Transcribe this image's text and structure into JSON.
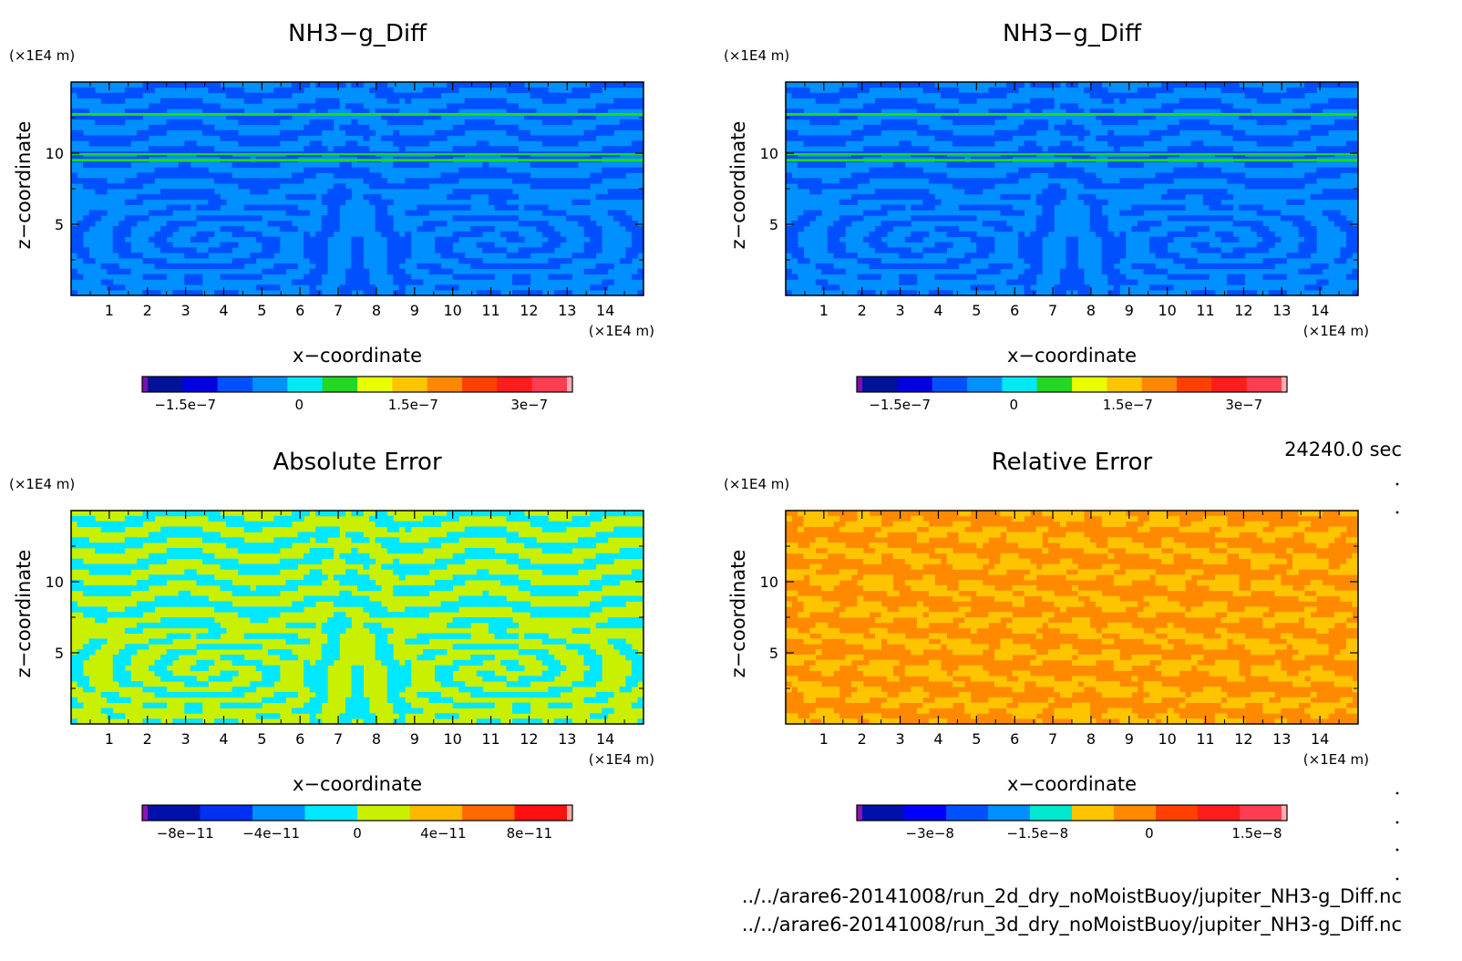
{
  "time_label": "24240.0 sec",
  "file_lines": [
    "../../arare6-20141008/run_2d_dry_noMoistBuoy/jupiter_NH3-g_Diff.nc",
    "../../arare6-20141008/run_3d_dry_noMoistBuoy/jupiter_NH3-g_Diff.nc"
  ],
  "colors": {
    "palette_a": [
      "#7a10b0",
      "#00129a",
      "#0000e0",
      "#0050ff",
      "#0090ff",
      "#00e8f4",
      "#22d820",
      "#eaff00",
      "#ffc400",
      "#ff8800",
      "#ff4000",
      "#ff1c1c",
      "#ff3c50",
      "#ffb0b0"
    ],
    "palette_abs": [
      "#8a14b4",
      "#0010a8",
      "#0030f0",
      "#0090ff",
      "#00e8ff",
      "#c8f000",
      "#ffb800",
      "#ff6a00",
      "#ff1010",
      "#ffaaaa"
    ],
    "palette_rel": [
      "#8a14b4",
      "#0010a8",
      "#0000ff",
      "#0050ff",
      "#0090ff",
      "#00e8d0",
      "#ffc400",
      "#ff8a00",
      "#ff4000",
      "#ff1c1c",
      "#ff3c50",
      "#ffb0b0"
    ]
  },
  "chart_data": [
    {
      "type": "heatmap",
      "title": "NH3−g_Diff",
      "xlabel": "x−coordinate",
      "ylabel": "z−coordinate",
      "x_unit": "(×1E4 m)",
      "y_unit": "(×1E4 m)",
      "xlim": [
        0,
        15
      ],
      "ylim": [
        0,
        15
      ],
      "xticks": [
        "1",
        "2",
        "3",
        "4",
        "5",
        "6",
        "7",
        "8",
        "9",
        "10",
        "11",
        "12",
        "13",
        "14"
      ],
      "yticks": [
        "5",
        "10"
      ],
      "colorbar": {
        "ticks": [
          "−1.5e−7",
          "0",
          "1.5e−7",
          "3e−7"
        ],
        "palette": "palette_a",
        "field_colors": [
          "#0090ff",
          "#0050ff",
          "#00e8f4",
          "#22d820"
        ]
      }
    },
    {
      "type": "heatmap",
      "title": "NH3−g_Diff",
      "xlabel": "x−coordinate",
      "ylabel": "z−coordinate",
      "x_unit": "(×1E4 m)",
      "y_unit": "(×1E4 m)",
      "xlim": [
        0,
        15
      ],
      "ylim": [
        0,
        15
      ],
      "xticks": [
        "1",
        "2",
        "3",
        "4",
        "5",
        "6",
        "7",
        "8",
        "9",
        "10",
        "11",
        "12",
        "13",
        "14"
      ],
      "yticks": [
        "5",
        "10"
      ],
      "colorbar": {
        "ticks": [
          "−1.5e−7",
          "0",
          "1.5e−7",
          "3e−7"
        ],
        "palette": "palette_a",
        "field_colors": [
          "#0090ff",
          "#0050ff",
          "#00e8f4",
          "#22d820"
        ]
      }
    },
    {
      "type": "heatmap",
      "title": "Absolute Error",
      "xlabel": "x−coordinate",
      "ylabel": "z−coordinate",
      "x_unit": "(×1E4 m)",
      "y_unit": "(×1E4 m)",
      "xlim": [
        0,
        15
      ],
      "ylim": [
        0,
        15
      ],
      "xticks": [
        "1",
        "2",
        "3",
        "4",
        "5",
        "6",
        "7",
        "8",
        "9",
        "10",
        "11",
        "12",
        "13",
        "14"
      ],
      "yticks": [
        "5",
        "10"
      ],
      "colorbar": {
        "ticks": [
          "−8e−11",
          "−4e−11",
          "0",
          "4e−11",
          "8e−11"
        ],
        "palette": "palette_abs",
        "field_colors": [
          "#c8f000",
          "#00e8ff",
          "#c8f000",
          "#00e8ff"
        ]
      }
    },
    {
      "type": "heatmap",
      "title": "Relative Error",
      "xlabel": "x−coordinate",
      "ylabel": "z−coordinate",
      "x_unit": "(×1E4 m)",
      "y_unit": "(×1E4 m)",
      "xlim": [
        0,
        15
      ],
      "ylim": [
        0,
        15
      ],
      "xticks": [
        "1",
        "2",
        "3",
        "4",
        "5",
        "6",
        "7",
        "8",
        "9",
        "10",
        "11",
        "12",
        "13",
        "14"
      ],
      "yticks": [
        "5",
        "10"
      ],
      "colorbar": {
        "ticks": [
          "−3e−8",
          "−1.5e−8",
          "0",
          "1.5e−8"
        ],
        "palette": "palette_rel",
        "field_colors": [
          "#ff8a00",
          "#ffc400",
          "#ff8a00",
          "#ffc400"
        ]
      }
    }
  ]
}
